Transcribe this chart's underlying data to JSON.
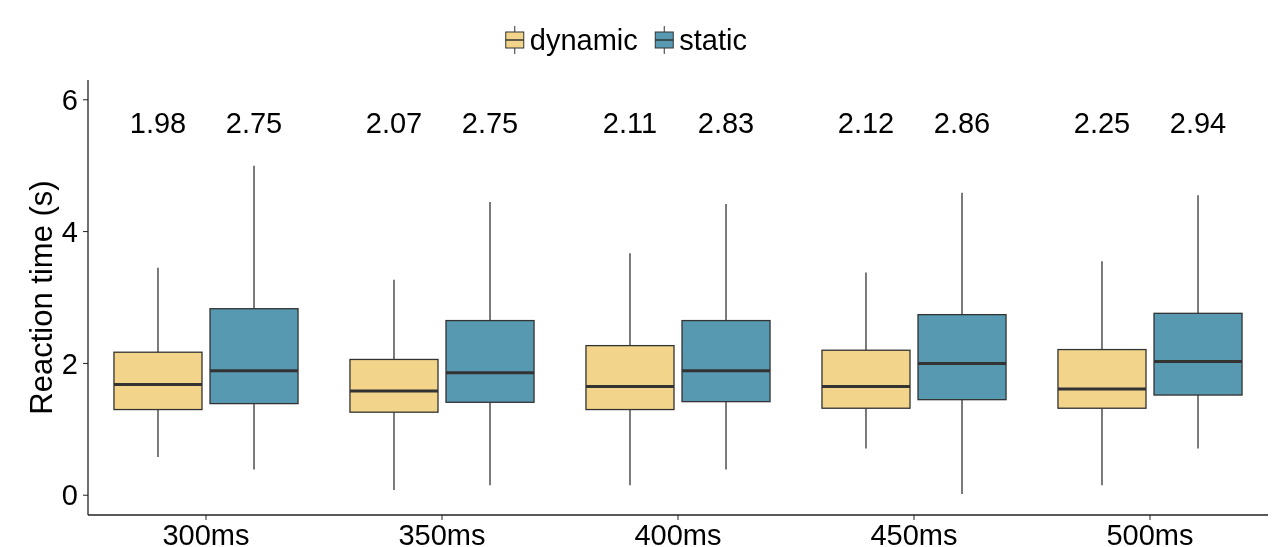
{
  "chart_data": {
    "type": "box",
    "ylabel": "Reaction time (s)",
    "categories": [
      "300ms",
      "350ms",
      "400ms",
      "450ms",
      "500ms"
    ],
    "ylim": [
      -0.3,
      6.3
    ],
    "yticks": [
      0,
      2,
      4,
      6
    ],
    "grid": false,
    "legend": "top",
    "series": [
      {
        "name": "dynamic",
        "color": "#f2d58a",
        "value_labels": [
          "1.98",
          "2.07",
          "2.11",
          "2.12",
          "2.25"
        ],
        "boxes": [
          {
            "low": 0.58,
            "q1": 1.3,
            "median": 1.68,
            "q3": 2.17,
            "high": 3.45
          },
          {
            "low": 0.08,
            "q1": 1.26,
            "median": 1.58,
            "q3": 2.06,
            "high": 3.27
          },
          {
            "low": 0.15,
            "q1": 1.3,
            "median": 1.65,
            "q3": 2.27,
            "high": 3.67
          },
          {
            "low": 0.71,
            "q1": 1.32,
            "median": 1.65,
            "q3": 2.2,
            "high": 3.38
          },
          {
            "low": 0.15,
            "q1": 1.32,
            "median": 1.61,
            "q3": 2.21,
            "high": 3.55
          }
        ]
      },
      {
        "name": "static",
        "color": "#5899b2",
        "value_labels": [
          "2.75",
          "2.75",
          "2.83",
          "2.86",
          "2.94"
        ],
        "boxes": [
          {
            "low": 0.39,
            "q1": 1.39,
            "median": 1.89,
            "q3": 2.83,
            "high": 5.0
          },
          {
            "low": 0.15,
            "q1": 1.41,
            "median": 1.86,
            "q3": 2.65,
            "high": 4.45
          },
          {
            "low": 0.39,
            "q1": 1.42,
            "median": 1.89,
            "q3": 2.65,
            "high": 4.42
          },
          {
            "low": 0.02,
            "q1": 1.45,
            "median": 2.0,
            "q3": 2.74,
            "high": 4.59
          },
          {
            "low": 0.71,
            "q1": 1.52,
            "median": 2.03,
            "q3": 2.76,
            "high": 4.55
          }
        ]
      }
    ]
  }
}
